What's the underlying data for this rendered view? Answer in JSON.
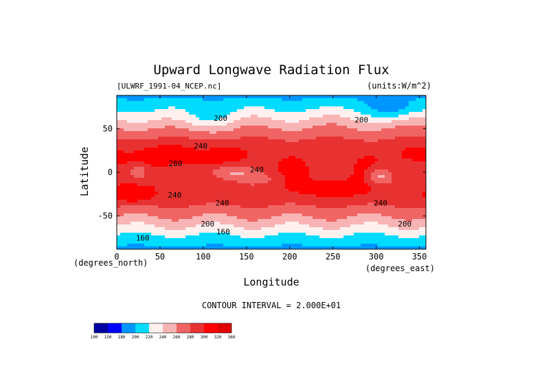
{
  "chart_data": {
    "type": "heatmap",
    "title": "Upward Longwave Radiation Flux",
    "subtitle_left": "[ULWRF_1991-04_NCEP.nc]",
    "subtitle_right": "(units:W/m^2)",
    "xlabel": "Longitude",
    "ylabel": "Latitude",
    "x_units": "(degrees_east)",
    "y_units": "(degrees_north)",
    "xlim": [
      0,
      357.5
    ],
    "ylim": [
      -88,
      88
    ],
    "x_ticks": [
      0,
      50,
      100,
      150,
      200,
      250,
      300,
      350
    ],
    "x_tick_labels": [
      "0",
      "50",
      "100",
      "150",
      "200",
      "250",
      "300",
      "350"
    ],
    "y_ticks": [
      50,
      0,
      -50
    ],
    "y_tick_labels": [
      "50",
      "0",
      "-50"
    ],
    "contour_interval_text": "CONTOUR INTERVAL = 2.000E+01",
    "contour_labels": [
      {
        "lon": 120,
        "lat": 59,
        "text": "200"
      },
      {
        "lon": 283,
        "lat": 57,
        "text": "200"
      },
      {
        "lon": 97,
        "lat": 27,
        "text": "240"
      },
      {
        "lon": 68,
        "lat": 7,
        "text": "280"
      },
      {
        "lon": 162,
        "lat": 0,
        "text": "240"
      },
      {
        "lon": 67,
        "lat": -29,
        "text": "240"
      },
      {
        "lon": 305,
        "lat": -38,
        "text": "240"
      },
      {
        "lon": 122,
        "lat": -38,
        "text": "240"
      },
      {
        "lon": 105,
        "lat": -62,
        "text": "200"
      },
      {
        "lon": 333,
        "lat": -62,
        "text": "200"
      },
      {
        "lon": 123,
        "lat": -71,
        "text": "160"
      },
      {
        "lon": 30,
        "lat": -78,
        "text": "160"
      }
    ],
    "levels": [
      140,
      160,
      180,
      200,
      220,
      240,
      260,
      280,
      300,
      320
    ],
    "colorbar": {
      "labels": [
        "100",
        "150",
        "180",
        "200",
        "220",
        "240",
        "260",
        "280",
        "300",
        "320",
        "360"
      ],
      "colors": [
        "#0000a0",
        "#0000ff",
        "#0096ff",
        "#00dcff",
        "#fff0f0",
        "#f8b4b4",
        "#f06464",
        "#e83232",
        "#ff0000",
        "#e00000"
      ]
    },
    "band_colors": [
      "#0000a0",
      "#0000ff",
      "#0096ff",
      "#00dcff",
      "#fff0f0",
      "#f8b4b4",
      "#f06464",
      "#e83232",
      "#ff0000"
    ],
    "grid": false
  }
}
